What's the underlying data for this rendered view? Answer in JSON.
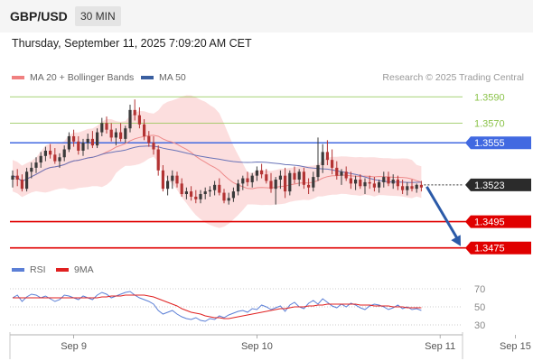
{
  "header": {
    "pair": "GBP/USD",
    "timeframe": "30 MIN"
  },
  "datetime": "Thursday, September 11, 2025 7:09:20 AM CET",
  "legend_top": [
    {
      "label": "MA 20 + Bollinger Bands",
      "color": "#f08080"
    },
    {
      "label": "MA 50",
      "color": "#3a5fa0"
    }
  ],
  "credit": "Research © 2025 Trading Central",
  "legend_bottom": [
    {
      "label": "RSI",
      "color": "#5b7fd6"
    },
    {
      "label": "9MA",
      "color": "#e02020"
    }
  ],
  "colors": {
    "up": "#3a3a3a",
    "down": "#b33333",
    "resistance": "#8bc34a",
    "pivot": "#4169e1",
    "support": "#e00000",
    "arrow": "#2b5aa8",
    "band": "#fbd3d3",
    "ma20": "#ee8a8a",
    "ma50": "#6a74b8"
  },
  "levels": [
    {
      "value": 1.359,
      "label": "1.3590",
      "kind": "resistance"
    },
    {
      "value": 1.357,
      "label": "1.3570",
      "kind": "resistance"
    },
    {
      "value": 1.3555,
      "label": "1.3555",
      "kind": "pivot"
    },
    {
      "value": 1.3523,
      "label": "1.3523",
      "kind": "current"
    },
    {
      "value": 1.3495,
      "label": "1.3495",
      "kind": "support"
    },
    {
      "value": 1.3475,
      "label": "1.3475",
      "kind": "support"
    }
  ],
  "chart_data": [
    {
      "type": "candlestick",
      "price_range": [
        1.347,
        1.3595
      ],
      "ohlc": [
        [
          1.3527,
          1.3534,
          1.3521,
          1.353
        ],
        [
          1.353,
          1.3535,
          1.3522,
          1.3527
        ],
        [
          1.3527,
          1.3531,
          1.3518,
          1.352
        ],
        [
          1.352,
          1.3536,
          1.3518,
          1.3533
        ],
        [
          1.3533,
          1.354,
          1.3528,
          1.3536
        ],
        [
          1.3536,
          1.3544,
          1.3532,
          1.354
        ],
        [
          1.354,
          1.3548,
          1.3536,
          1.3545
        ],
        [
          1.3545,
          1.3552,
          1.3541,
          1.3549
        ],
        [
          1.3549,
          1.3554,
          1.3543,
          1.3546
        ],
        [
          1.3546,
          1.3551,
          1.3539,
          1.3541
        ],
        [
          1.3541,
          1.3547,
          1.3536,
          1.3544
        ],
        [
          1.3544,
          1.3553,
          1.3541,
          1.355
        ],
        [
          1.355,
          1.3563,
          1.3548,
          1.356
        ],
        [
          1.356,
          1.3565,
          1.3552,
          1.3556
        ],
        [
          1.3556,
          1.356,
          1.3546,
          1.3549
        ],
        [
          1.3549,
          1.3558,
          1.3545,
          1.3555
        ],
        [
          1.3555,
          1.3562,
          1.355,
          1.3558
        ],
        [
          1.3558,
          1.3564,
          1.3551,
          1.3553
        ],
        [
          1.3553,
          1.3566,
          1.3551,
          1.3563
        ],
        [
          1.3563,
          1.3574,
          1.356,
          1.357
        ],
        [
          1.357,
          1.3575,
          1.3562,
          1.3565
        ],
        [
          1.3565,
          1.357,
          1.3556,
          1.3559
        ],
        [
          1.3559,
          1.3566,
          1.3553,
          1.3563
        ],
        [
          1.3563,
          1.357,
          1.3556,
          1.3558
        ],
        [
          1.3558,
          1.3568,
          1.3555,
          1.3566
        ],
        [
          1.3566,
          1.3584,
          1.3563,
          1.358
        ],
        [
          1.358,
          1.3588,
          1.3572,
          1.3576
        ],
        [
          1.3576,
          1.3582,
          1.3566,
          1.3569
        ],
        [
          1.3569,
          1.3573,
          1.3557,
          1.356
        ],
        [
          1.356,
          1.3564,
          1.3552,
          1.3555
        ],
        [
          1.3555,
          1.356,
          1.3546,
          1.355
        ],
        [
          1.355,
          1.3553,
          1.353,
          1.3534
        ],
        [
          1.3534,
          1.3538,
          1.3518,
          1.352
        ],
        [
          1.352,
          1.353,
          1.3515,
          1.3526
        ],
        [
          1.3526,
          1.3534,
          1.352,
          1.353
        ],
        [
          1.353,
          1.3533,
          1.3521,
          1.3524
        ],
        [
          1.3524,
          1.3528,
          1.3514,
          1.3516
        ],
        [
          1.3516,
          1.3521,
          1.3512,
          1.3518
        ],
        [
          1.3518,
          1.3522,
          1.3511,
          1.3514
        ],
        [
          1.3514,
          1.3519,
          1.3509,
          1.3512
        ],
        [
          1.3512,
          1.3519,
          1.3509,
          1.3516
        ],
        [
          1.3516,
          1.3521,
          1.3512,
          1.3518
        ],
        [
          1.3518,
          1.3522,
          1.3514,
          1.3519
        ],
        [
          1.3519,
          1.3526,
          1.3515,
          1.3523
        ],
        [
          1.3523,
          1.3528,
          1.3515,
          1.3517
        ],
        [
          1.3517,
          1.352,
          1.3509,
          1.3511
        ],
        [
          1.3511,
          1.3517,
          1.3508,
          1.3513
        ],
        [
          1.3513,
          1.3521,
          1.351,
          1.3518
        ],
        [
          1.3518,
          1.3527,
          1.3515,
          1.3524
        ],
        [
          1.3524,
          1.353,
          1.3519,
          1.3528
        ],
        [
          1.3528,
          1.3533,
          1.3522,
          1.3525
        ],
        [
          1.3525,
          1.3532,
          1.3521,
          1.353
        ],
        [
          1.353,
          1.3537,
          1.3526,
          1.3534
        ],
        [
          1.3534,
          1.3539,
          1.3528,
          1.3531
        ],
        [
          1.3531,
          1.3535,
          1.3524,
          1.3526
        ],
        [
          1.3526,
          1.3532,
          1.3517,
          1.352
        ],
        [
          1.352,
          1.3529,
          1.3508,
          1.3527
        ],
        [
          1.3527,
          1.3534,
          1.352,
          1.353
        ],
        [
          1.353,
          1.3536,
          1.3513,
          1.3518
        ],
        [
          1.3518,
          1.3534,
          1.3515,
          1.3532
        ],
        [
          1.3532,
          1.3537,
          1.3524,
          1.3527
        ],
        [
          1.3527,
          1.3535,
          1.3522,
          1.3533
        ],
        [
          1.3533,
          1.3536,
          1.352,
          1.3523
        ],
        [
          1.3523,
          1.3528,
          1.3516,
          1.3521
        ],
        [
          1.3521,
          1.3533,
          1.3518,
          1.3529
        ],
        [
          1.3529,
          1.3559,
          1.3526,
          1.3538
        ],
        [
          1.3538,
          1.3554,
          1.3532,
          1.3548
        ],
        [
          1.3548,
          1.3557,
          1.3538,
          1.3542
        ],
        [
          1.3542,
          1.355,
          1.3531,
          1.3536
        ],
        [
          1.3536,
          1.3541,
          1.3527,
          1.353
        ],
        [
          1.353,
          1.3535,
          1.3523,
          1.3533
        ],
        [
          1.3533,
          1.3537,
          1.3526,
          1.3528
        ],
        [
          1.3528,
          1.3533,
          1.352,
          1.3524
        ],
        [
          1.3524,
          1.353,
          1.3519,
          1.3527
        ],
        [
          1.3527,
          1.3531,
          1.352,
          1.3522
        ],
        [
          1.3522,
          1.3528,
          1.3516,
          1.3525
        ],
        [
          1.3525,
          1.353,
          1.352,
          1.3524
        ],
        [
          1.3524,
          1.3529,
          1.3518,
          1.3521
        ],
        [
          1.3521,
          1.3527,
          1.3517,
          1.3525
        ],
        [
          1.3525,
          1.3533,
          1.3521,
          1.3529
        ],
        [
          1.3529,
          1.3533,
          1.3522,
          1.3524
        ],
        [
          1.3524,
          1.3531,
          1.352,
          1.3527
        ],
        [
          1.3527,
          1.353,
          1.3519,
          1.3522
        ],
        [
          1.3522,
          1.3527,
          1.3516,
          1.3519
        ],
        [
          1.3519,
          1.3525,
          1.3515,
          1.3522
        ],
        [
          1.3522,
          1.3527,
          1.3518,
          1.352
        ],
        [
          1.352,
          1.3524,
          1.3517,
          1.3523
        ],
        [
          1.3523,
          1.3526,
          1.3518,
          1.3521
        ]
      ]
    },
    {
      "type": "line",
      "name": "RSI",
      "y_ticks": [
        70,
        50,
        30
      ],
      "ylim": [
        20,
        80
      ],
      "series": [
        {
          "name": "RSI",
          "values": [
            60,
            63,
            56,
            61,
            64,
            63,
            60,
            62,
            59,
            56,
            58,
            63,
            62,
            60,
            58,
            62,
            60,
            58,
            63,
            66,
            64,
            60,
            62,
            64,
            66,
            67,
            63,
            60,
            58,
            56,
            53,
            46,
            42,
            44,
            46,
            42,
            39,
            37,
            36,
            38,
            35,
            34,
            37,
            36,
            40,
            38,
            41,
            43,
            45,
            46,
            44,
            48,
            47,
            52,
            50,
            47,
            49,
            51,
            45,
            52,
            55,
            50,
            48,
            54,
            57,
            53,
            59,
            55,
            51,
            49,
            53,
            50,
            54,
            52,
            49,
            47,
            51,
            53,
            52,
            50,
            47,
            49,
            52,
            48,
            50,
            47,
            48,
            46
          ]
        },
        {
          "name": "9MA",
          "values": [
            60,
            60,
            60,
            60,
            60,
            60,
            60,
            60,
            60,
            60,
            60,
            60,
            60,
            60,
            60,
            60,
            60,
            60,
            60,
            61,
            61,
            62,
            62,
            62,
            63,
            63,
            63,
            63,
            63,
            62,
            61,
            59,
            57,
            55,
            53,
            51,
            48,
            46,
            44,
            43,
            42,
            40,
            39,
            38,
            38,
            37,
            37,
            38,
            39,
            40,
            41,
            42,
            43,
            44,
            45,
            46,
            47,
            48,
            48,
            49,
            50,
            50,
            50,
            51,
            51,
            52,
            52,
            53,
            53,
            53,
            53,
            53,
            53,
            53,
            52,
            52,
            52,
            51,
            51,
            51,
            51,
            50,
            50,
            50,
            49,
            49,
            49,
            49
          ]
        }
      ]
    }
  ],
  "x_axis": [
    {
      "label": "Sep 9",
      "index": 13
    },
    {
      "label": "Sep 10",
      "index": 52
    },
    {
      "label": "Sep 11",
      "index": 91
    },
    {
      "label": "Sep 15",
      "index": 107
    }
  ]
}
